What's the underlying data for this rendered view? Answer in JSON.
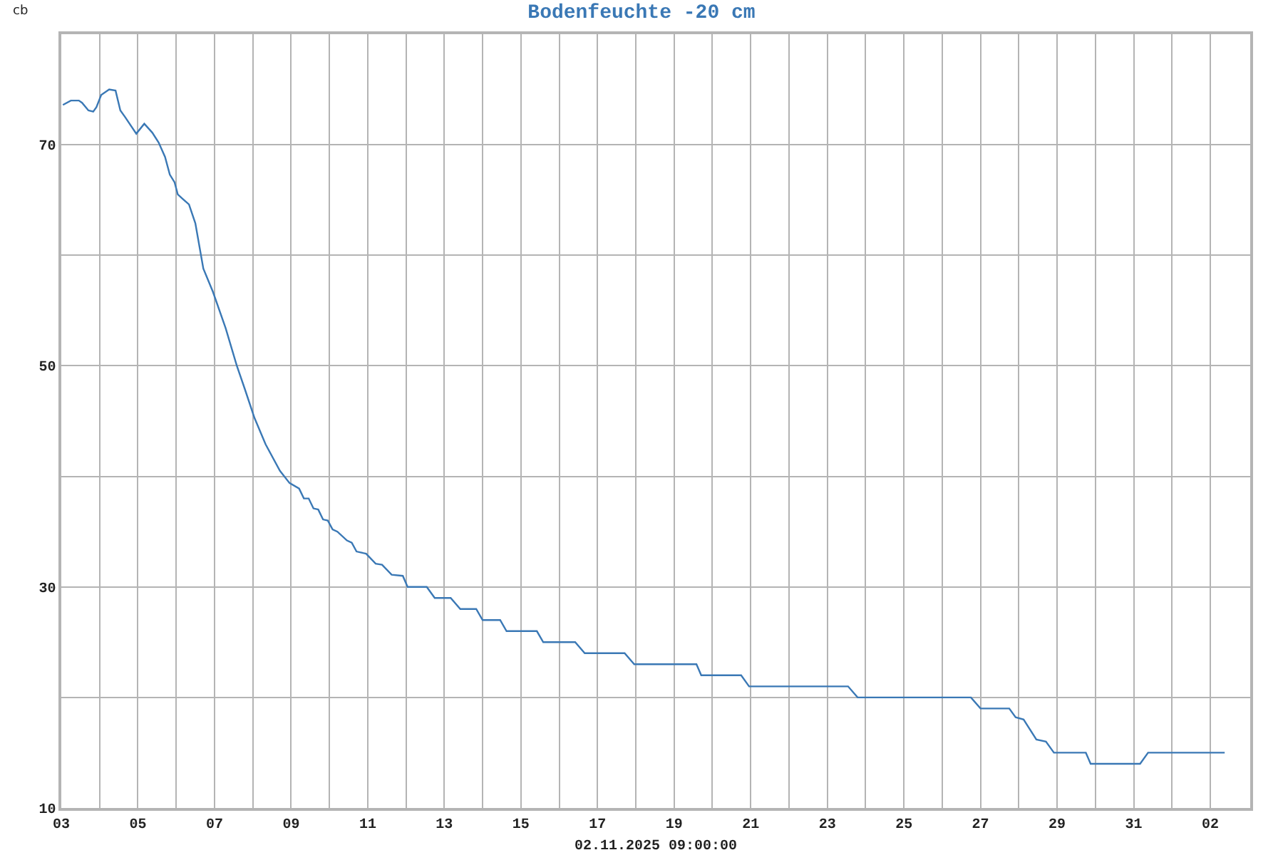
{
  "chart_data": {
    "type": "line",
    "title": "Bodenfeuchte -20 cm",
    "ylabel": "cb",
    "annotations": [
      "02.11.2025 09:00:00"
    ],
    "series": [
      {
        "color": "#3a78b5",
        "x": [
          "2025-10-03T01:00",
          "2025-10-03T06:00",
          "2025-10-03T11:00",
          "2025-10-03T13:00",
          "2025-10-03T17:00",
          "2025-10-03T20:00",
          "2025-10-03T22:00",
          "2025-10-04T01:00",
          "2025-10-04T06:00",
          "2025-10-04T10:00",
          "2025-10-04T13:00",
          "2025-10-04T16:00",
          "2025-10-04T23:00",
          "2025-10-05T04:00",
          "2025-10-05T09:00",
          "2025-10-05T13:00",
          "2025-10-05T17:00",
          "2025-10-05T20:00",
          "2025-10-05T23:00",
          "2025-10-06T01:00",
          "2025-10-06T08:00",
          "2025-10-06T12:00",
          "2025-10-06T17:00",
          "2025-10-06T23:00",
          "2025-10-07T07:00",
          "2025-10-07T14:00",
          "2025-10-07T19:00",
          "2025-10-08T01:00",
          "2025-10-08T08:00",
          "2025-10-08T17:00",
          "2025-10-08T23:00",
          "2025-10-09T05:00",
          "2025-10-09T08:00",
          "2025-10-09T11:00",
          "2025-10-09T14:00",
          "2025-10-09T17:00",
          "2025-10-09T20:00",
          "2025-10-09T23:00",
          "2025-10-10T02:00",
          "2025-10-10T05:00",
          "2025-10-10T11:00",
          "2025-10-10T14:00",
          "2025-10-10T17:00",
          "2025-10-10T23:00",
          "2025-10-11T05:00",
          "2025-10-11T09:00",
          "2025-10-11T15:00",
          "2025-10-11T22:00",
          "2025-10-12T01:00",
          "2025-10-12T13:00",
          "2025-10-12T18:00",
          "2025-10-13T04:00",
          "2025-10-13T10:00",
          "2025-10-13T20:00",
          "2025-10-14T00:00",
          "2025-10-14T11:00",
          "2025-10-14T15:00",
          "2025-10-15T10:00",
          "2025-10-15T14:00",
          "2025-10-16T10:00",
          "2025-10-16T16:00",
          "2025-10-17T17:00",
          "2025-10-17T23:00",
          "2025-10-19T14:00",
          "2025-10-19T17:00",
          "2025-10-20T18:00",
          "2025-10-20T23:00",
          "2025-10-23T13:00",
          "2025-10-23T19:00",
          "2025-10-26T18:00",
          "2025-10-27T00:00",
          "2025-10-27T18:00",
          "2025-10-27T22:00",
          "2025-10-28T03:00",
          "2025-10-28T11:00",
          "2025-10-28T17:00",
          "2025-10-28T22:00",
          "2025-10-29T18:00",
          "2025-10-29T21:00",
          "2025-10-31T04:00",
          "2025-10-31T09:00",
          "2025-11-02T09:00"
        ],
        "values": [
          73.6,
          74.0,
          74.0,
          73.8,
          73.1,
          73.0,
          73.4,
          74.5,
          75.0,
          74.9,
          73.1,
          72.5,
          71.0,
          71.9,
          71.1,
          70.2,
          68.9,
          67.3,
          66.6,
          65.5,
          64.6,
          62.9,
          58.8,
          56.7,
          53.4,
          50.0,
          47.9,
          45.3,
          42.9,
          40.5,
          39.4,
          38.9,
          38.0,
          38.0,
          37.1,
          37.0,
          36.1,
          36.0,
          35.2,
          35.0,
          34.2,
          34.0,
          33.2,
          33.0,
          32.1,
          32.0,
          31.1,
          31.0,
          30.0,
          30.0,
          29.0,
          29.0,
          28.0,
          28.0,
          27.0,
          27.0,
          26.0,
          26.0,
          25.0,
          25.0,
          24.0,
          24.0,
          23.0,
          23.0,
          22.0,
          22.0,
          21.0,
          21.0,
          20.0,
          20.0,
          19.0,
          19.0,
          18.2,
          18.0,
          16.2,
          16.0,
          15.0,
          15.0,
          14.0,
          14.0,
          15.0,
          15.0
        ]
      }
    ],
    "xlim": [
      "2025-10-03",
      "2025-11-03T01:00"
    ],
    "xticks": [
      {
        "value": "2025-10-03",
        "label": "03"
      },
      {
        "value": "2025-10-04",
        "label": null
      },
      {
        "value": "2025-10-05",
        "label": "05"
      },
      {
        "value": "2025-10-06",
        "label": null
      },
      {
        "value": "2025-10-07",
        "label": "07"
      },
      {
        "value": "2025-10-08",
        "label": null
      },
      {
        "value": "2025-10-09",
        "label": "09"
      },
      {
        "value": "2025-10-10",
        "label": null
      },
      {
        "value": "2025-10-11",
        "label": "11"
      },
      {
        "value": "2025-10-12",
        "label": null
      },
      {
        "value": "2025-10-13",
        "label": "13"
      },
      {
        "value": "2025-10-14",
        "label": null
      },
      {
        "value": "2025-10-15",
        "label": "15"
      },
      {
        "value": "2025-10-16",
        "label": null
      },
      {
        "value": "2025-10-17",
        "label": "17"
      },
      {
        "value": "2025-10-18",
        "label": null
      },
      {
        "value": "2025-10-19",
        "label": "19"
      },
      {
        "value": "2025-10-20",
        "label": null
      },
      {
        "value": "2025-10-21",
        "label": "21"
      },
      {
        "value": "2025-10-22",
        "label": null
      },
      {
        "value": "2025-10-23",
        "label": "23"
      },
      {
        "value": "2025-10-24",
        "label": null
      },
      {
        "value": "2025-10-25",
        "label": "25"
      },
      {
        "value": "2025-10-26",
        "label": null
      },
      {
        "value": "2025-10-27",
        "label": "27"
      },
      {
        "value": "2025-10-28",
        "label": null
      },
      {
        "value": "2025-10-29",
        "label": "29"
      },
      {
        "value": "2025-10-30",
        "label": null
      },
      {
        "value": "2025-10-31",
        "label": "31"
      },
      {
        "value": "2025-11-01",
        "label": null
      },
      {
        "value": "2025-11-02",
        "label": "02"
      }
    ],
    "ylim": [
      10,
      80
    ],
    "yticks": [
      10,
      {
        "value": 20,
        "label": null
      },
      30,
      {
        "value": 40,
        "label": null
      },
      50,
      {
        "value": 60,
        "label": null
      },
      70
    ],
    "grid": true
  }
}
